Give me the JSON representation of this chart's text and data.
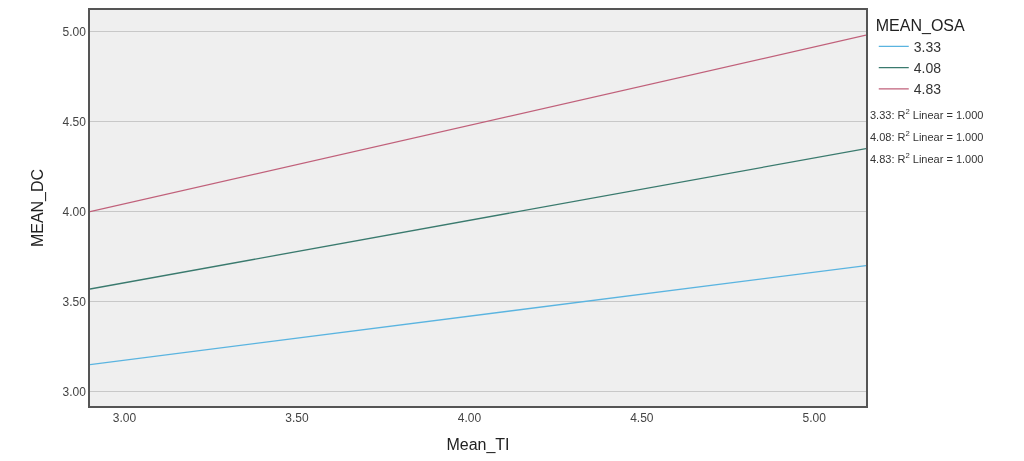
{
  "chart_data": {
    "type": "line",
    "xlabel": "Mean_TI",
    "ylabel": "MEAN_DC",
    "legend_title": "MEAN_OSA",
    "x": [
      2.9,
      5.15
    ],
    "series": [
      {
        "name": "3.33",
        "color": "#5ab4e0",
        "values": [
          3.15,
          3.7
        ]
      },
      {
        "name": "4.08",
        "color": "#3a7a6e",
        "values": [
          3.57,
          4.35
        ]
      },
      {
        "name": "4.83",
        "color": "#c0607a",
        "values": [
          4.0,
          4.98
        ]
      }
    ],
    "xlim": [
      2.9,
      5.15
    ],
    "xticks": [
      {
        "value": 3,
        "label": "3.00"
      },
      {
        "value": 3.5,
        "label": "3.50"
      },
      {
        "value": 4,
        "label": "4.00"
      },
      {
        "value": 4.5,
        "label": "4.50"
      },
      {
        "value": 5,
        "label": "5.00"
      }
    ],
    "ylim": [
      2.92,
      5.12
    ],
    "yticks": [
      {
        "value": 3,
        "label": "3.00"
      },
      {
        "value": 3.5,
        "label": "3.50"
      },
      {
        "value": 4,
        "label": "4.00"
      },
      {
        "value": 4.5,
        "label": "4.50"
      },
      {
        "value": 5,
        "label": "5.00"
      }
    ],
    "grid": "y",
    "legend": "top right",
    "marker": "none",
    "line_style": "solid",
    "annotations": [
      "3.33: R$^{2}$ Linear = 1.000",
      "4.08: R$^{2}$ Linear = 1.000",
      "4.83: R$^{2}$ Linear = 1.000"
    ]
  }
}
